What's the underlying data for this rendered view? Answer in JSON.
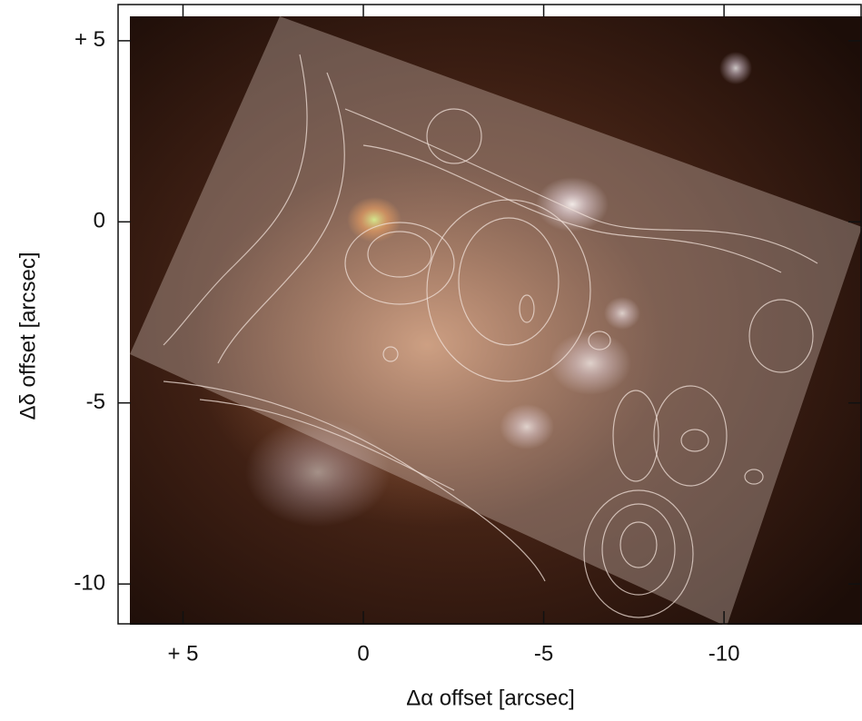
{
  "chart_data": {
    "type": "image",
    "xlabel": "Δα offset [arcsec]",
    "ylabel": "Δδ offset [arcsec]",
    "xlim": [
      6.8,
      -13.8
    ],
    "ylim": [
      -11.1,
      6.0
    ],
    "xticks": [
      {
        "value": 5,
        "label": "+ 5"
      },
      0,
      -5,
      -10
    ],
    "yticks": [
      {
        "value": 5,
        "label": "+ 5"
      },
      0,
      -5,
      -10
    ]
  }
}
